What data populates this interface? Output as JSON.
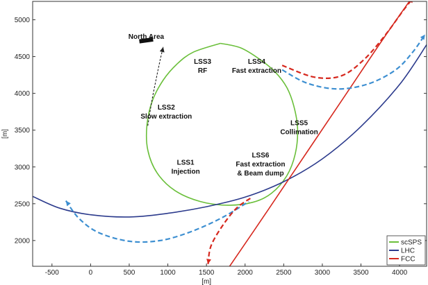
{
  "chart_data": {
    "type": "line",
    "title": "",
    "xlabel": "[m]",
    "ylabel": "[m]",
    "xlim": [
      -750,
      4350
    ],
    "ylim": [
      1650,
      5250
    ],
    "xticks": [
      -500,
      0,
      500,
      1000,
      1500,
      2000,
      2500,
      3000,
      3500,
      4000
    ],
    "yticks": [
      2000,
      2500,
      3000,
      3500,
      4000,
      4500,
      5000
    ],
    "grid": false,
    "legend_position": "bottom-right",
    "series": [
      {
        "name": "scSPS",
        "color": "#6abf3a",
        "style": "solid",
        "points": [
          [
            1680,
            4680
          ],
          [
            1940,
            4620
          ],
          [
            2180,
            4470
          ],
          [
            2390,
            4290
          ],
          [
            2540,
            4080
          ],
          [
            2630,
            3830
          ],
          [
            2680,
            3520
          ],
          [
            2650,
            3180
          ],
          [
            2540,
            2880
          ],
          [
            2340,
            2640
          ],
          [
            2100,
            2520
          ],
          [
            1780,
            2480
          ],
          [
            1420,
            2530
          ],
          [
            1090,
            2680
          ],
          [
            860,
            2920
          ],
          [
            740,
            3230
          ],
          [
            730,
            3570
          ],
          [
            800,
            3900
          ],
          [
            940,
            4180
          ],
          [
            1120,
            4400
          ],
          [
            1330,
            4560
          ],
          [
            1680,
            4680
          ]
        ]
      },
      {
        "name": "LHC",
        "color": "#2b3a8c",
        "style": "solid",
        "points": [
          [
            -750,
            2600
          ],
          [
            -400,
            2440
          ],
          [
            0,
            2350
          ],
          [
            500,
            2320
          ],
          [
            1000,
            2370
          ],
          [
            1500,
            2460
          ],
          [
            2000,
            2590
          ],
          [
            2500,
            2800
          ],
          [
            3000,
            3110
          ],
          [
            3500,
            3550
          ],
          [
            4000,
            4120
          ],
          [
            4350,
            4660
          ]
        ]
      },
      {
        "name": "FCC",
        "color": "#d6281e",
        "style": "solid",
        "points": [
          [
            1800,
            1650
          ],
          [
            2300,
            2420
          ],
          [
            2800,
            3200
          ],
          [
            3300,
            3980
          ],
          [
            3800,
            4760
          ],
          [
            4180,
            5330
          ]
        ]
      }
    ],
    "transfer_lines": [
      {
        "color": "#3d8fd1",
        "style": "dashed",
        "arrow_end": "start",
        "points": [
          [
            -320,
            2540
          ],
          [
            -150,
            2300
          ],
          [
            100,
            2110
          ],
          [
            500,
            1990
          ],
          [
            900,
            2000
          ],
          [
            1300,
            2120
          ],
          [
            1700,
            2310
          ],
          [
            2050,
            2530
          ]
        ]
      },
      {
        "color": "#3d8fd1",
        "style": "dashed",
        "arrow_end": "end",
        "points": [
          [
            2480,
            4320
          ],
          [
            2800,
            4140
          ],
          [
            3200,
            4060
          ],
          [
            3600,
            4130
          ],
          [
            3950,
            4320
          ],
          [
            4170,
            4560
          ],
          [
            4330,
            4800
          ]
        ]
      },
      {
        "color": "#d6281e",
        "style": "dashed",
        "arrow_end": "start",
        "points": [
          [
            1520,
            1680
          ],
          [
            1560,
            1930
          ],
          [
            1720,
            2220
          ],
          [
            1900,
            2450
          ],
          [
            2080,
            2580
          ]
        ]
      },
      {
        "color": "#d6281e",
        "style": "dashed",
        "arrow_end": "end",
        "points": [
          [
            2480,
            4380
          ],
          [
            2900,
            4220
          ],
          [
            3250,
            4240
          ],
          [
            3550,
            4470
          ],
          [
            3820,
            4800
          ],
          [
            4050,
            5130
          ],
          [
            4180,
            5300
          ]
        ]
      },
      {
        "color": "#222222",
        "style": "dashed",
        "arrow_end": "end",
        "points": [
          [
            740,
            3560
          ],
          [
            790,
            3880
          ],
          [
            850,
            4200
          ],
          [
            900,
            4450
          ],
          [
            940,
            4630
          ]
        ]
      }
    ],
    "annotations": [
      {
        "lines": [
          "North Area"
        ],
        "x": 720,
        "y": 4740
      },
      {
        "lines": [
          "LSS3",
          "RF"
        ],
        "x": 1450,
        "y": 4400
      },
      {
        "lines": [
          "LSS4",
          "Fast extraction"
        ],
        "x": 2150,
        "y": 4400
      },
      {
        "lines": [
          "LSS2",
          "Slow extraction"
        ],
        "x": 980,
        "y": 3780
      },
      {
        "lines": [
          "LSS5",
          "Collimation"
        ],
        "x": 2700,
        "y": 3570
      },
      {
        "lines": [
          "LSS1",
          "Injection"
        ],
        "x": 1230,
        "y": 3030
      },
      {
        "lines": [
          "LSS6",
          "Fast extraction",
          "& Beam dump"
        ],
        "x": 2200,
        "y": 3130
      }
    ],
    "north_area_marker": {
      "x": 720,
      "y": 4720
    },
    "legend": [
      "scSPS",
      "LHC",
      "FCC"
    ]
  }
}
